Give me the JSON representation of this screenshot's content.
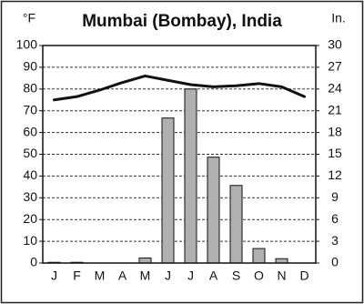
{
  "chart_data": {
    "type": "climate",
    "title": "Mumbai (Bombay), India",
    "ylabel": "°F",
    "y2label": "In.",
    "categories": [
      "J",
      "F",
      "M",
      "A",
      "M",
      "J",
      "J",
      "A",
      "S",
      "O",
      "N",
      "D"
    ],
    "series": [
      {
        "kind": "line",
        "color": "#111111",
        "axis": "y",
        "values": [
          75,
          76.5,
          79.5,
          83,
          86,
          84,
          82,
          81,
          81.5,
          82.5,
          81,
          76.5
        ]
      },
      {
        "kind": "bar",
        "color": "#b0b0b0",
        "axis": "y2",
        "values": [
          0.1,
          0.1,
          0,
          0,
          0.7,
          20,
          24,
          14.6,
          10.7,
          2,
          0.6,
          0
        ]
      }
    ],
    "ylim": [
      0,
      100
    ],
    "yticks": [
      0,
      10,
      20,
      30,
      40,
      50,
      60,
      70,
      80,
      90,
      100
    ],
    "y2lim": [
      0,
      30
    ],
    "y2ticks": [
      0,
      3,
      6,
      9,
      12,
      15,
      18,
      21,
      24,
      27,
      30
    ],
    "grid": true
  }
}
